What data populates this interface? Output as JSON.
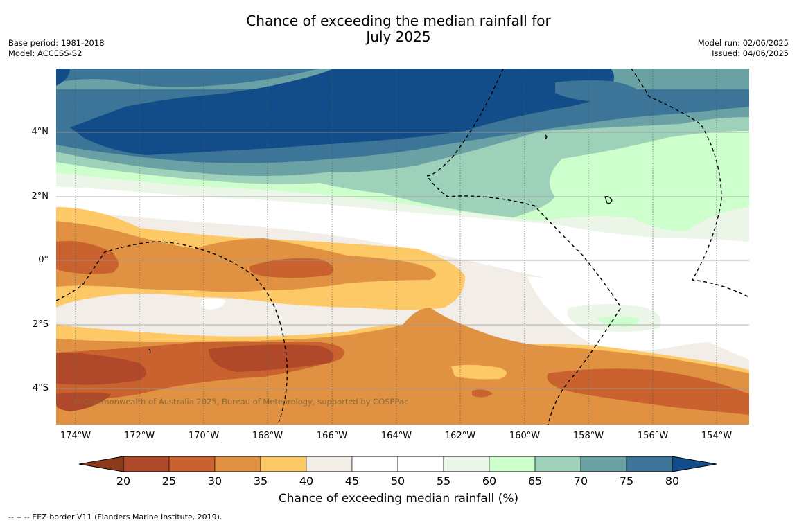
{
  "title_line1": "Chance of exceeding the median rainfall for",
  "title_line2": "July 2025",
  "meta_left": {
    "base_period": "Base period: 1981-2018",
    "model": "Model: ACCESS-S2"
  },
  "meta_right": {
    "model_run": "Model run: 02/06/2025",
    "issued": "Issued: 04/06/2025"
  },
  "copyright": "© Commonwealth of Australia 2025, Bureau of Meteorology, supported by COSPPac",
  "lat_labels": [
    "4°N",
    "2°N",
    "0°",
    "2°S",
    "4°S"
  ],
  "lon_labels": [
    "174°W",
    "172°W",
    "170°W",
    "168°W",
    "166°W",
    "164°W",
    "162°W",
    "160°W",
    "158°W",
    "156°W",
    "154°W"
  ],
  "colorbar": {
    "ticks": [
      "20",
      "25",
      "30",
      "35",
      "40",
      "45",
      "50",
      "55",
      "60",
      "65",
      "70",
      "75",
      "80"
    ],
    "label": "Chance of exceeding median rainfall (%)",
    "colors": [
      "#8b3a1c",
      "#b0492a",
      "#c9622f",
      "#e09142",
      "#fdc966",
      "#f2ede7",
      "#ffffff",
      "#ffffff",
      "#ebf5e8",
      "#ccffcc",
      "#9dd1b9",
      "#6aa1a4",
      "#3c7597",
      "#134d89"
    ]
  },
  "footnote": "-- -- -- EEZ border V11 (Flanders Marine Institute, 2019).",
  "map_data": {
    "type": "contour-map",
    "variable": "Chance of exceeding median rainfall (%)",
    "lon_range": [
      "174.6°W",
      "153.0°W"
    ],
    "lat_range": [
      "5.2°S",
      "5.9°N"
    ],
    "pattern": "wet (70-80%+) north of 2°N in western/central area; 55-70% band around 1.5-3.5°N; dry (25-35%) south of equator, driest near 3-4°S"
  }
}
